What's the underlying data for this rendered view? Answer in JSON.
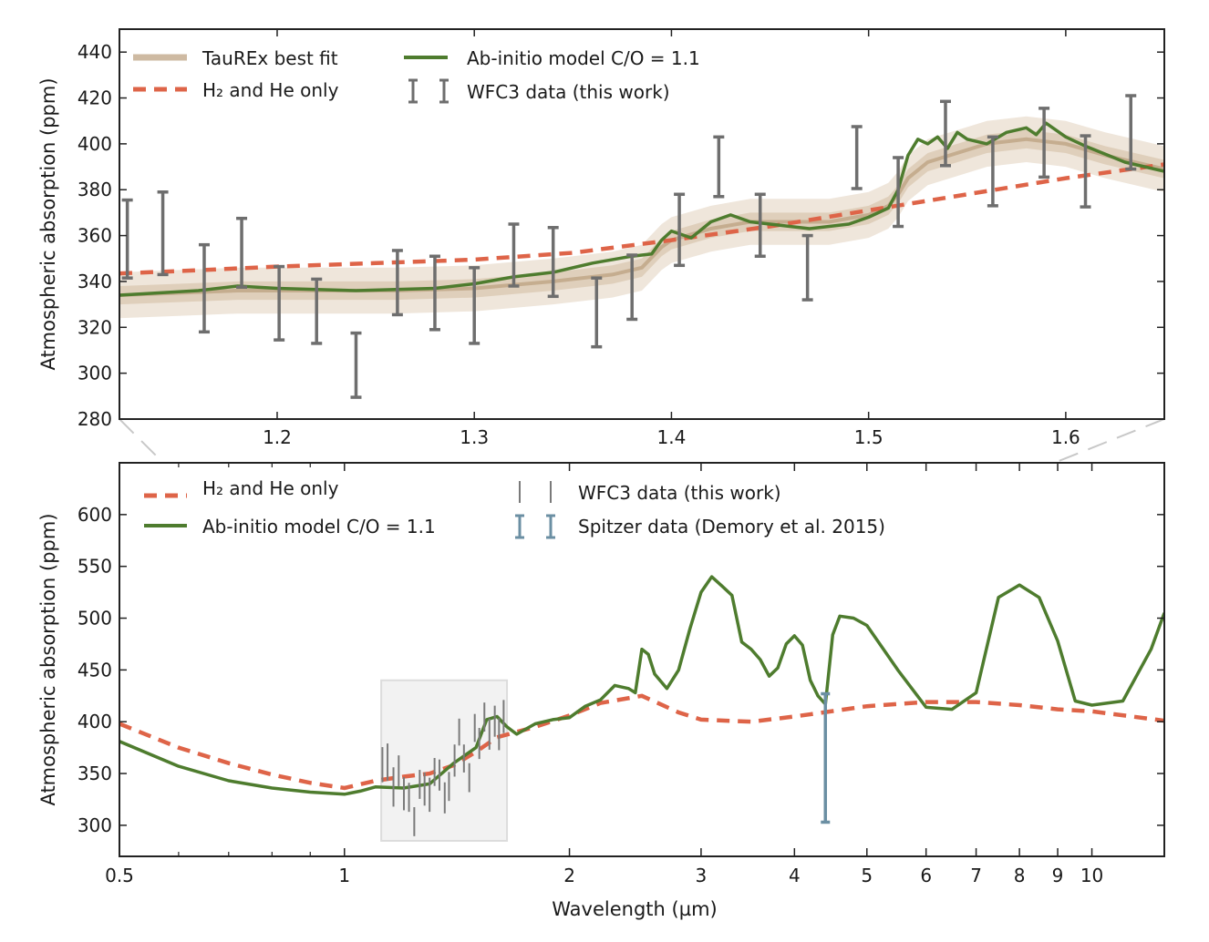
{
  "chart_data": [
    {
      "type": "line",
      "panel": "top",
      "xlabel": "",
      "ylabel": "Atmospheric absorption (ppm)",
      "xlim": [
        1.12,
        1.65
      ],
      "ylim": [
        280,
        450
      ],
      "xticks": [
        1.2,
        1.3,
        1.4,
        1.5,
        1.6
      ],
      "xtick_labels": [
        "1.2",
        "1.3",
        "1.4",
        "1.5",
        "1.6"
      ],
      "yticks": [
        280,
        300,
        320,
        340,
        360,
        380,
        400,
        420,
        440
      ],
      "ytick_labels": [
        "280",
        "300",
        "320",
        "340",
        "360",
        "380",
        "400",
        "420",
        "440"
      ],
      "grid": false,
      "legend_position": "top-left",
      "legend": [
        {
          "label": "TauREx best fit",
          "style": "band"
        },
        {
          "label": "H₂ and He only",
          "style": "dashed"
        },
        {
          "label": "Ab-initio model C/O = 1.1",
          "style": "solid"
        },
        {
          "label": "WFC3 data (this work)",
          "style": "errorbar"
        }
      ],
      "colors": {
        "taurex": "#c2a98b",
        "taurex_band_inner": "#dfcfbb",
        "taurex_band_outer": "#efe6db",
        "h2he": "#de6448",
        "abinitio": "#4e7c2e",
        "wfc3": "#6e6e6e"
      },
      "series": [
        {
          "name": "TauREx best fit",
          "x": [
            1.12,
            1.15,
            1.18,
            1.22,
            1.26,
            1.3,
            1.34,
            1.37,
            1.385,
            1.395,
            1.4,
            1.42,
            1.44,
            1.46,
            1.48,
            1.5,
            1.51,
            1.515,
            1.52,
            1.53,
            1.56,
            1.58,
            1.6,
            1.62,
            1.65
          ],
          "y": [
            334,
            335,
            336,
            336,
            336,
            337,
            340,
            343,
            346,
            355,
            358,
            363,
            366,
            366,
            366,
            369,
            373,
            378,
            385,
            392,
            400,
            402,
            400,
            395,
            389
          ],
          "band_inner": 4,
          "band_outer": 10
        },
        {
          "name": "H₂ and He only",
          "x": [
            1.12,
            1.15,
            1.2,
            1.25,
            1.3,
            1.35,
            1.4,
            1.45,
            1.5,
            1.55,
            1.6,
            1.65
          ],
          "y": [
            343.5,
            344.5,
            346.5,
            348,
            349.5,
            352.5,
            358,
            364,
            371,
            378,
            385,
            391
          ]
        },
        {
          "name": "Ab-initio model C/O = 1.1",
          "x": [
            1.12,
            1.14,
            1.16,
            1.18,
            1.2,
            1.24,
            1.28,
            1.3,
            1.32,
            1.34,
            1.36,
            1.38,
            1.39,
            1.395,
            1.4,
            1.41,
            1.42,
            1.43,
            1.44,
            1.45,
            1.47,
            1.49,
            1.5,
            1.51,
            1.515,
            1.52,
            1.525,
            1.53,
            1.535,
            1.54,
            1.545,
            1.55,
            1.56,
            1.57,
            1.58,
            1.585,
            1.59,
            1.6,
            1.61,
            1.63,
            1.65
          ],
          "y": [
            334,
            335,
            336,
            338,
            337,
            336,
            337,
            339,
            342,
            344,
            348,
            351,
            352,
            358,
            362,
            359,
            366,
            369,
            366,
            365,
            363,
            365,
            368,
            372,
            380,
            395,
            402,
            400,
            403,
            398,
            405,
            402,
            400,
            405,
            407,
            404,
            409,
            403,
            399,
            392,
            388
          ]
        },
        {
          "name": "WFC3 data (this work)",
          "x": [
            1.124,
            1.142,
            1.163,
            1.182,
            1.201,
            1.22,
            1.24,
            1.261,
            1.28,
            1.3,
            1.32,
            1.34,
            1.362,
            1.38,
            1.404,
            1.424,
            1.445,
            1.469,
            1.494,
            1.515,
            1.539,
            1.563,
            1.589,
            1.61,
            1.633
          ],
          "y": [
            358.5,
            361,
            337,
            352.5,
            330.5,
            327,
            303.5,
            339.5,
            335,
            329.5,
            351.5,
            348.5,
            326.5,
            337.5,
            362.5,
            390,
            364.5,
            346,
            394,
            379,
            404.5,
            388,
            400.5,
            388,
            405
          ],
          "err": [
            17,
            18,
            19,
            15,
            16,
            14,
            14,
            14,
            16,
            16.5,
            13.5,
            15,
            15,
            14,
            15.5,
            13,
            13.5,
            14,
            13.5,
            15,
            14,
            15,
            15,
            15.5,
            16
          ]
        }
      ]
    },
    {
      "type": "line",
      "panel": "bottom",
      "xlabel": "Wavelength (µm)",
      "ylabel": "Atmospheric absorption (ppm)",
      "xscale": "log",
      "xlim": [
        0.5,
        12.5
      ],
      "ylim": [
        270,
        650
      ],
      "xticks": [
        0.5,
        1,
        2,
        3,
        4,
        5,
        6,
        7,
        8,
        9,
        10
      ],
      "xtick_labels": [
        "0.5",
        "1",
        "2",
        "3",
        "4",
        "5",
        "6",
        "7",
        "8",
        "9",
        "10"
      ],
      "yticks": [
        300,
        350,
        400,
        450,
        500,
        550,
        600
      ],
      "ytick_labels": [
        "300",
        "350",
        "400",
        "450",
        "500",
        "550",
        "600"
      ],
      "grid": false,
      "legend_position": "top",
      "legend": [
        {
          "label": "H₂ and He only",
          "style": "dashed"
        },
        {
          "label": "Ab-initio model C/O = 1.1",
          "style": "solid"
        },
        {
          "label": "WFC3 data (this work)",
          "style": "errorbar-thin"
        },
        {
          "label": "Spitzer data (Demory et al. 2015)",
          "style": "errorbar-blue"
        }
      ],
      "colors": {
        "h2he": "#de6448",
        "abinitio": "#4e7c2e",
        "wfc3": "#7a7a7a",
        "spitzer": "#6b8fa3",
        "zoom_box": "#dcdcdc"
      },
      "zoom_box": {
        "xlim": [
          1.12,
          1.65
        ],
        "ylim": [
          285,
          440
        ]
      },
      "series": [
        {
          "name": "H₂ and He only",
          "x": [
            0.5,
            0.6,
            0.7,
            0.8,
            0.9,
            1.0,
            1.1,
            1.2,
            1.3,
            1.4,
            1.5,
            1.6,
            1.8,
            2.0,
            2.2,
            2.5,
            2.8,
            3.0,
            3.5,
            4.0,
            5.0,
            6.0,
            7.0,
            8.0,
            9.0,
            10.0,
            12.5
          ],
          "y": [
            398,
            375,
            360,
            349,
            341,
            336,
            343,
            347,
            350,
            358,
            371,
            385,
            395,
            406,
            418,
            425,
            409,
            402,
            400,
            405,
            415,
            419,
            419,
            416,
            412,
            410,
            401
          ]
        },
        {
          "name": "Ab-initio model C/O = 1.1",
          "x": [
            0.5,
            0.6,
            0.7,
            0.8,
            0.9,
            1.0,
            1.05,
            1.1,
            1.2,
            1.3,
            1.4,
            1.5,
            1.55,
            1.6,
            1.65,
            1.7,
            1.8,
            1.9,
            2.0,
            2.1,
            2.2,
            2.3,
            2.4,
            2.45,
            2.5,
            2.55,
            2.6,
            2.7,
            2.8,
            2.9,
            3.0,
            3.1,
            3.2,
            3.3,
            3.4,
            3.5,
            3.6,
            3.7,
            3.8,
            3.9,
            4.0,
            4.1,
            4.2,
            4.3,
            4.4,
            4.5,
            4.6,
            4.8,
            5.0,
            5.5,
            6.0,
            6.5,
            7.0,
            7.5,
            8.0,
            8.5,
            9.0,
            9.5,
            10.0,
            11.0,
            12.0,
            12.5
          ],
          "y": [
            381,
            357,
            343,
            336,
            332,
            330,
            333,
            337,
            336,
            340,
            360,
            375,
            402,
            405,
            395,
            388,
            398,
            402,
            404,
            415,
            421,
            435,
            432,
            428,
            470,
            465,
            446,
            432,
            450,
            490,
            525,
            540,
            531,
            522,
            477,
            470,
            460,
            444,
            452,
            475,
            483,
            474,
            440,
            425,
            417,
            484,
            502,
            500,
            493,
            450,
            414,
            412,
            428,
            520,
            532,
            520,
            478,
            420,
            416,
            420,
            470,
            505
          ]
        },
        {
          "name": "WFC3 data (this work)",
          "x": [
            1.124,
            1.142,
            1.163,
            1.182,
            1.201,
            1.22,
            1.24,
            1.261,
            1.28,
            1.3,
            1.32,
            1.34,
            1.362,
            1.38,
            1.404,
            1.424,
            1.445,
            1.469,
            1.494,
            1.515,
            1.539,
            1.563,
            1.589,
            1.61,
            1.633
          ],
          "y": [
            358.5,
            361,
            337,
            352.5,
            330.5,
            327,
            303.5,
            339.5,
            335,
            329.5,
            351.5,
            348.5,
            326.5,
            337.5,
            362.5,
            390,
            364.5,
            346,
            394,
            379,
            404.5,
            388,
            400.5,
            388,
            405
          ],
          "err": [
            17,
            18,
            19,
            15,
            16,
            14,
            14,
            14,
            16,
            16.5,
            13.5,
            15,
            15,
            14,
            15.5,
            13,
            13.5,
            14,
            13.5,
            15,
            14,
            15,
            15,
            15.5,
            16
          ]
        },
        {
          "name": "Spitzer data (Demory et al. 2015)",
          "x": [
            4.4
          ],
          "y": [
            365
          ],
          "err": [
            62
          ]
        }
      ]
    }
  ]
}
